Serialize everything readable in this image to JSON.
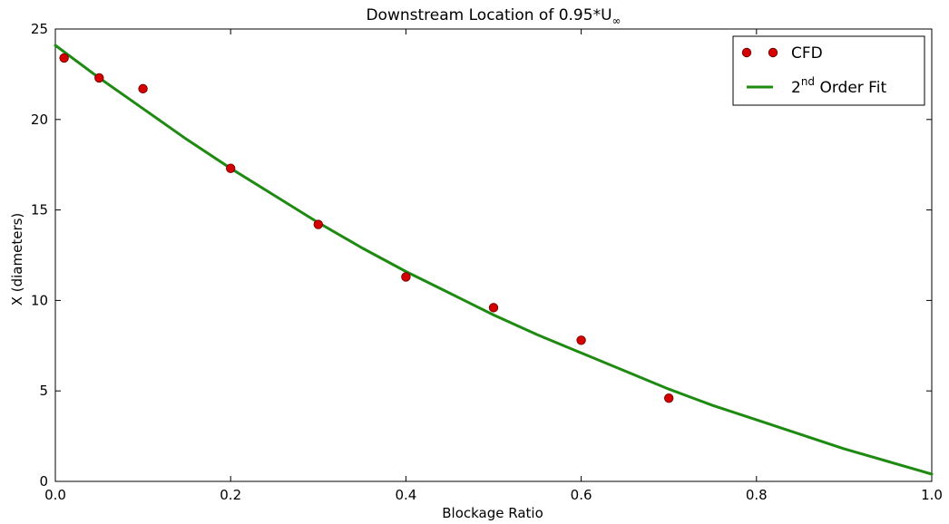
{
  "chart_data": {
    "type": "scatter",
    "title_main": "Downstream Location of 0.95*U",
    "title_subscript": "∞",
    "xlabel": "Blockage Ratio",
    "ylabel": "X (diameters)",
    "xlim": [
      0.0,
      1.0
    ],
    "ylim": [
      0,
      25
    ],
    "xticks": [
      0.0,
      0.2,
      0.4,
      0.6,
      0.8,
      1.0
    ],
    "xtick_labels": [
      "0.0",
      "0.2",
      "0.4",
      "0.6",
      "0.8",
      "1.0"
    ],
    "yticks": [
      0,
      5,
      10,
      15,
      20,
      25
    ],
    "ytick_labels": [
      "0",
      "5",
      "10",
      "15",
      "20",
      "25"
    ],
    "grid": false,
    "legend_position": "top-right",
    "series": [
      {
        "name": "CFD",
        "kind": "scatter",
        "color": "#d40000",
        "x": [
          0.01,
          0.05,
          0.1,
          0.2,
          0.3,
          0.4,
          0.5,
          0.6,
          0.7
        ],
        "y": [
          23.4,
          22.3,
          21.7,
          17.3,
          14.2,
          11.3,
          9.6,
          7.8,
          4.6
        ]
      },
      {
        "name_base": "2",
        "name_superscript": "nd",
        "name_rest": " Order Fit",
        "kind": "line",
        "color": "#1e8a12",
        "x": [
          0.0,
          0.05,
          0.1,
          0.15,
          0.2,
          0.25,
          0.3,
          0.35,
          0.4,
          0.45,
          0.5,
          0.55,
          0.6,
          0.65,
          0.7,
          0.75,
          0.8,
          0.85,
          0.9,
          0.95,
          1.0
        ],
        "y": [
          24.1,
          22.3,
          20.6,
          18.9,
          17.3,
          15.8,
          14.3,
          12.9,
          11.6,
          10.4,
          9.2,
          8.1,
          7.1,
          6.1,
          5.1,
          4.2,
          3.4,
          2.6,
          1.8,
          1.1,
          0.4
        ]
      }
    ]
  }
}
